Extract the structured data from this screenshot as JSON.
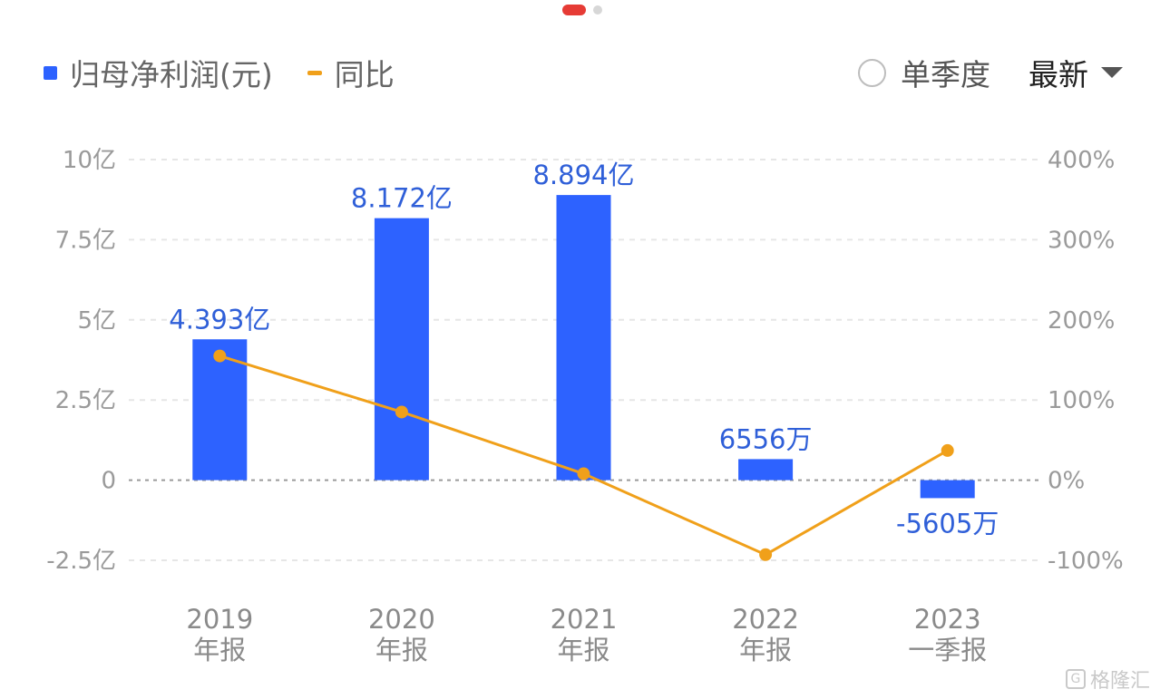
{
  "legend": {
    "net_profit": "归母净利润(元)",
    "yoy": "同比"
  },
  "controls": {
    "single_quarter": "单季度",
    "latest": "最新"
  },
  "colors": {
    "bar": "#2d62ff",
    "line": "#f0a01a",
    "bar_label": "#2f5fd8"
  },
  "watermark": "格隆汇",
  "chart_data": {
    "type": "bar",
    "categories": [
      [
        "2019",
        "年报"
      ],
      [
        "2020",
        "年报"
      ],
      [
        "2021",
        "年报"
      ],
      [
        "2022",
        "年报"
      ],
      [
        "2023",
        "一季报"
      ]
    ],
    "series": [
      {
        "name": "归母净利润(元)",
        "type": "bar",
        "axis": "left",
        "values": [
          4.393,
          8.172,
          8.894,
          0.6556,
          -0.5605
        ],
        "labels": [
          "4.393亿",
          "8.172亿",
          "8.894亿",
          "6556万",
          "-5605万"
        ]
      },
      {
        "name": "同比",
        "type": "line",
        "axis": "right",
        "values": [
          155,
          85,
          8,
          -93,
          37
        ]
      }
    ],
    "left_axis": {
      "ticks": [
        10,
        7.5,
        5,
        2.5,
        0,
        -2.5
      ],
      "tick_labels": [
        "10亿",
        "7.5亿",
        "5亿",
        "2.5亿",
        "0",
        "-2.5亿"
      ],
      "range": [
        -2.5,
        10
      ]
    },
    "right_axis": {
      "ticks": [
        400,
        300,
        200,
        100,
        0,
        -100
      ],
      "tick_labels": [
        "400%",
        "300%",
        "200%",
        "100%",
        "0%",
        "-100%"
      ],
      "range": [
        -100,
        400
      ]
    },
    "grid": true
  }
}
